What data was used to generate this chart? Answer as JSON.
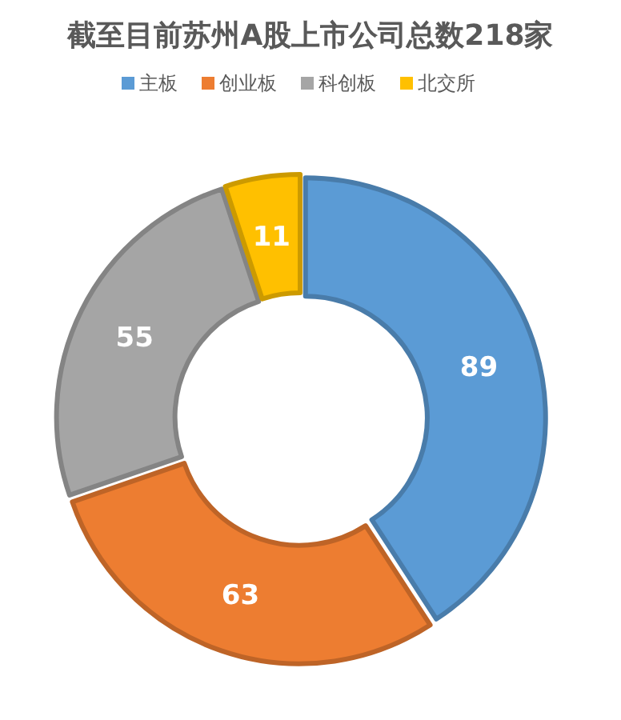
{
  "chart_data": {
    "type": "donut",
    "title": "截至目前苏州A股上市公司总数218家",
    "categories": [
      "主板",
      "创业板",
      "科创板",
      "北交所"
    ],
    "values": [
      89,
      63,
      55,
      11
    ],
    "colors": [
      "#5b9bd5",
      "#ed7d31",
      "#a5a5a5",
      "#ffc000"
    ],
    "data_labels": true,
    "legend": "top"
  }
}
